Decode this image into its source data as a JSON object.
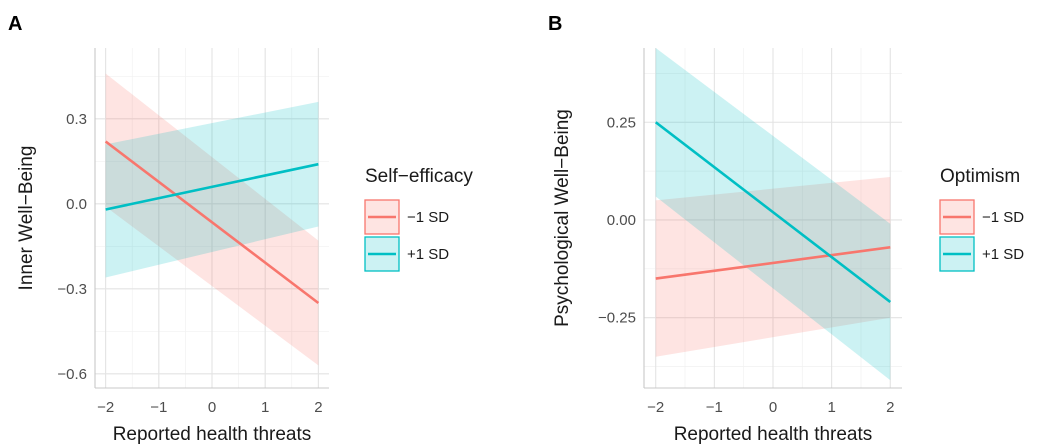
{
  "chart_data": [
    {
      "type": "line",
      "panel_tag": "A",
      "xlabel": "Reported health threats",
      "ylabel": "Inner Well−Being",
      "xlim": [
        -2.2,
        2.2
      ],
      "ylim": [
        -0.65,
        0.55
      ],
      "x_ticks": [
        -2,
        -1,
        0,
        1,
        2
      ],
      "x_tick_labels": [
        "−2",
        "−1",
        "0",
        "1",
        "2"
      ],
      "y_ticks": [
        -0.6,
        -0.3,
        0.0,
        0.3
      ],
      "y_tick_labels": [
        "−0.6",
        "−0.3",
        "0.0",
        "0.3"
      ],
      "grid": true,
      "legend": {
        "title": "Self−efficacy",
        "placement": "right"
      },
      "series": [
        {
          "name": "−1 SD",
          "color": "#F8766D",
          "x": [
            -2,
            2
          ],
          "y": [
            0.22,
            -0.35
          ],
          "ci_lower": [
            -0.01,
            -0.57
          ],
          "ci_upper": [
            0.46,
            -0.13
          ]
        },
        {
          "name": "+1 SD",
          "color": "#00BFC4",
          "x": [
            -2,
            2
          ],
          "y": [
            -0.02,
            0.14
          ],
          "ci_lower": [
            -0.26,
            -0.08
          ],
          "ci_upper": [
            0.21,
            0.36
          ]
        }
      ]
    },
    {
      "type": "line",
      "panel_tag": "B",
      "xlabel": "Reported health threats",
      "ylabel": "Psychological Well−Being",
      "xlim": [
        -2.2,
        2.2
      ],
      "ylim": [
        -0.43,
        0.44
      ],
      "x_ticks": [
        -2,
        -1,
        0,
        1,
        2
      ],
      "x_tick_labels": [
        "−2",
        "−1",
        "0",
        "1",
        "2"
      ],
      "y_ticks": [
        -0.25,
        0.0,
        0.25
      ],
      "y_tick_labels": [
        "−0.25",
        "0.00",
        "0.25"
      ],
      "grid": true,
      "legend": {
        "title": "Optimism",
        "placement": "right"
      },
      "series": [
        {
          "name": "−1 SD",
          "color": "#F8766D",
          "x": [
            -2,
            2
          ],
          "y": [
            -0.15,
            -0.07
          ],
          "ci_lower": [
            -0.35,
            -0.25
          ],
          "ci_upper": [
            0.05,
            0.11
          ]
        },
        {
          "name": "+1 SD",
          "color": "#00BFC4",
          "x": [
            -2,
            2
          ],
          "y": [
            0.25,
            -0.21
          ],
          "ci_lower": [
            0.06,
            -0.41
          ],
          "ci_upper": [
            0.44,
            -0.01
          ]
        }
      ]
    }
  ]
}
